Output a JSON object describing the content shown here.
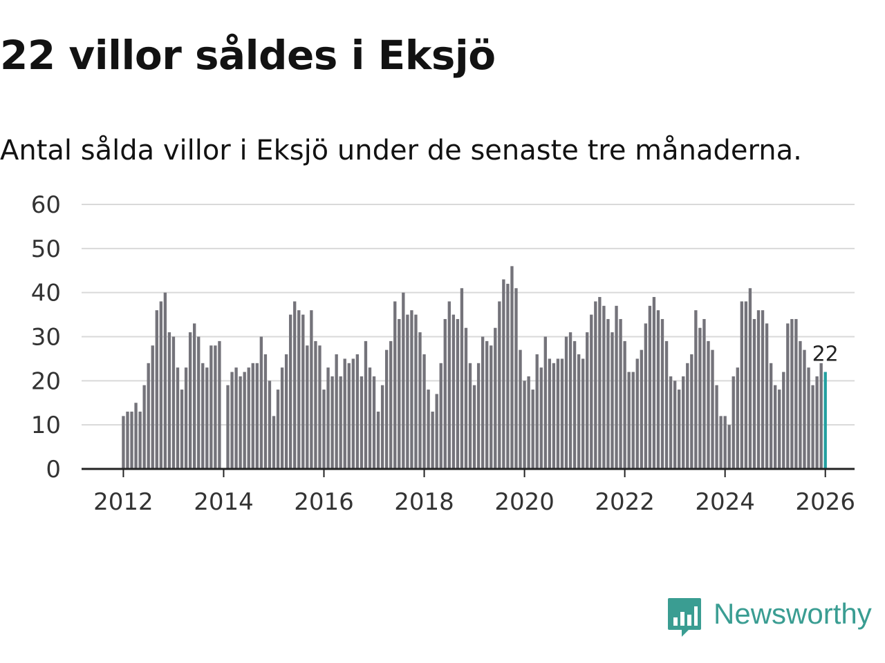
{
  "title": "22 villor såldes i Eksjö",
  "subtitle": "Antal sålda villor i Eksjö under de senaste tre månaderna.",
  "brand": {
    "name": "Newsworthy",
    "icon": "newsworthy-logo-icon",
    "color": "#3a9d92"
  },
  "colors": {
    "bar": "#74737a",
    "highlight": "#22a0a0",
    "grid": "#d9d9d9",
    "axis": "#222222",
    "text": "#333333"
  },
  "chart_data": {
    "type": "bar",
    "title": "22 villor såldes i Eksjö",
    "xlabel": "",
    "ylabel": "",
    "ylim": [
      0,
      60
    ],
    "yticks": [
      0,
      10,
      20,
      30,
      40,
      50,
      60
    ],
    "xticks": [
      "2012",
      "2014",
      "2016",
      "2018",
      "2020",
      "2022",
      "2024",
      "2026"
    ],
    "xlim": [
      "2011-03",
      "2026-08"
    ],
    "start_month": "2012-01",
    "grid": true,
    "highlight_label": "22",
    "values": [
      12,
      13,
      13,
      15,
      13,
      19,
      24,
      28,
      36,
      38,
      40,
      31,
      30,
      23,
      18,
      23,
      31,
      33,
      30,
      24,
      23,
      28,
      28,
      29,
      null,
      19,
      22,
      23,
      21,
      22,
      23,
      24,
      24,
      30,
      26,
      20,
      12,
      18,
      23,
      26,
      35,
      38,
      36,
      35,
      28,
      36,
      29,
      28,
      18,
      23,
      21,
      26,
      21,
      25,
      24,
      25,
      26,
      21,
      29,
      23,
      21,
      13,
      19,
      27,
      29,
      38,
      34,
      40,
      35,
      36,
      35,
      31,
      26,
      18,
      13,
      17,
      24,
      34,
      38,
      35,
      34,
      41,
      32,
      24,
      19,
      24,
      30,
      29,
      28,
      32,
      38,
      43,
      42,
      46,
      41,
      27,
      20,
      21,
      18,
      26,
      23,
      30,
      25,
      24,
      25,
      25,
      30,
      31,
      29,
      26,
      25,
      31,
      35,
      38,
      39,
      37,
      34,
      31,
      37,
      34,
      29,
      22,
      22,
      25,
      27,
      33,
      37,
      39,
      36,
      34,
      29,
      21,
      20,
      18,
      21,
      24,
      26,
      36,
      32,
      34,
      29,
      27,
      19,
      12,
      12,
      10,
      21,
      23,
      38,
      38,
      41,
      34,
      36,
      36,
      33,
      24,
      19,
      18,
      22,
      33,
      34,
      34,
      29,
      27,
      23,
      19,
      21,
      24,
      22
    ]
  }
}
